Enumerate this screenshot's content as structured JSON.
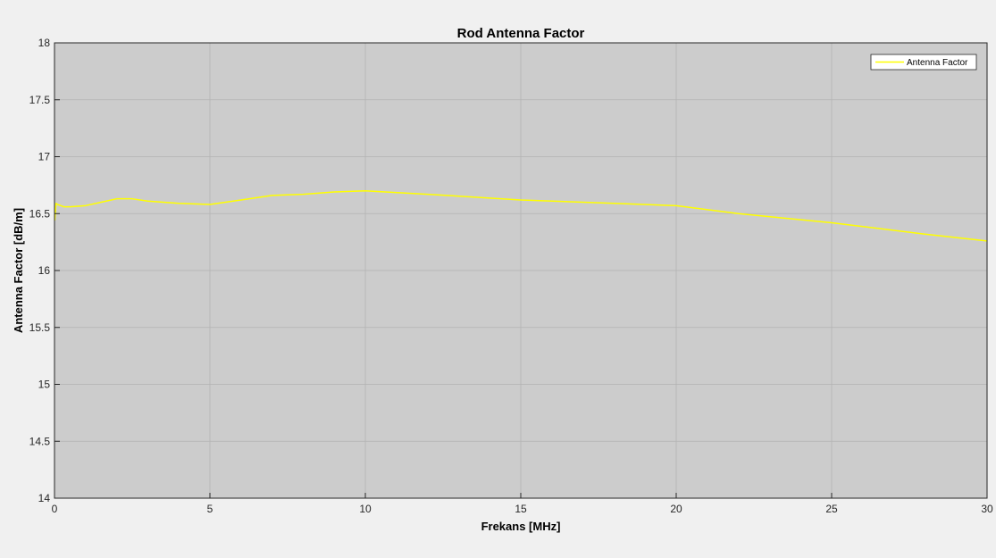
{
  "chart_data": {
    "type": "line",
    "title": "Rod Antenna Factor",
    "xlabel": "Frekans [MHz]",
    "ylabel": "Antenna Factor [dB/m]",
    "xlim": [
      0,
      30
    ],
    "ylim": [
      14,
      18
    ],
    "xticks": [
      0,
      5,
      10,
      15,
      20,
      25,
      30
    ],
    "yticks": [
      14,
      14.5,
      15,
      15.5,
      16,
      16.5,
      17,
      17.5,
      18
    ],
    "xtick_labels": [
      "0",
      "5",
      "10",
      "15",
      "20",
      "25",
      "30"
    ],
    "ytick_labels": [
      "14",
      "14.5",
      "15",
      "15.5",
      "16",
      "16.5",
      "17",
      "17.5",
      "18"
    ],
    "grid": true,
    "legend_position": "top-right",
    "series": [
      {
        "name": "Antenna Factor",
        "color": "#ffff00",
        "x": [
          0.01,
          0.05,
          0.1,
          0.2,
          0.3,
          0.5,
          1,
          1.5,
          2,
          2.5,
          3,
          4,
          5,
          6,
          7,
          8,
          9,
          10,
          12,
          15,
          18,
          20,
          22,
          25,
          28,
          30
        ],
        "y": [
          16.44,
          16.59,
          16.58,
          16.57,
          16.56,
          16.56,
          16.57,
          16.6,
          16.63,
          16.63,
          16.61,
          16.59,
          16.58,
          16.62,
          16.66,
          16.67,
          16.69,
          16.7,
          16.67,
          16.62,
          16.59,
          16.57,
          16.5,
          16.42,
          16.32,
          16.26
        ]
      }
    ]
  },
  "colors": {
    "figure_background": "#f0f0f0",
    "axes_background": "#cccccc",
    "grid": "#b3b3b3",
    "axis_line": "#262626"
  }
}
